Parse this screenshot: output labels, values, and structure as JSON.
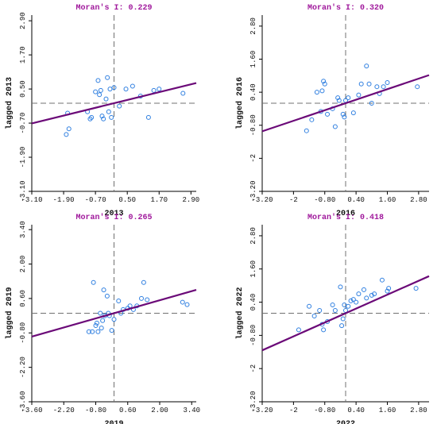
{
  "colors": {
    "title": "#a0199c",
    "regression_line": "#6b0a78",
    "points": "#2f7fe0",
    "reference_lines": "#707070",
    "axes": "#000000"
  },
  "chart_data": [
    {
      "type": "scatter",
      "title": "Moran's I: 0.229",
      "morans_i": 0.229,
      "xlabel": "2013",
      "ylabel": "lagged 2013",
      "xlim": [
        -3.1,
        3.1
      ],
      "ylim": [
        -3.1,
        3.1
      ],
      "xticks": [
        "-3.10",
        "-1.90",
        "-0.70",
        "0.50",
        "1.70",
        "2.90"
      ],
      "yticks": [
        "-3.10",
        "-1.90",
        "-0.70",
        "0.50",
        "1.70",
        "2.90"
      ],
      "xticks_value": [
        -3.1,
        -1.9,
        -0.7,
        0.5,
        1.7,
        2.9
      ],
      "yticks_value": [
        -3.1,
        -1.9,
        -0.7,
        0.5,
        1.7,
        2.9
      ],
      "points": [
        [
          -1.8,
          -1.1
        ],
        [
          -1.75,
          -0.35
        ],
        [
          -1.7,
          -0.9
        ],
        [
          -1.0,
          -0.3
        ],
        [
          -0.9,
          -0.55
        ],
        [
          -0.85,
          -0.5
        ],
        [
          -0.7,
          0.4
        ],
        [
          -0.6,
          0.8
        ],
        [
          -0.55,
          0.3
        ],
        [
          -0.5,
          0.45
        ],
        [
          -0.45,
          -0.45
        ],
        [
          -0.4,
          -0.55
        ],
        [
          -0.3,
          0.15
        ],
        [
          -0.25,
          0.9
        ],
        [
          -0.2,
          -0.3
        ],
        [
          -0.15,
          0.5
        ],
        [
          -0.1,
          -0.5
        ],
        [
          0.0,
          0.55
        ],
        [
          0.2,
          -0.1
        ],
        [
          0.45,
          0.5
        ],
        [
          0.7,
          0.6
        ],
        [
          1.0,
          0.25
        ],
        [
          1.3,
          -0.5
        ],
        [
          1.5,
          0.45
        ],
        [
          1.7,
          0.5
        ],
        [
          2.6,
          0.35
        ]
      ],
      "regression_line": {
        "x": [
          -3.1,
          3.1
        ],
        "y": [
          -0.71,
          0.71
        ]
      }
    },
    {
      "type": "scatter",
      "title": "Moran's I: 0.320",
      "morans_i": 0.32,
      "xlabel": "2016",
      "ylabel": "lagged 2016",
      "xlim": [
        -3.2,
        3.2
      ],
      "ylim": [
        -3.2,
        3.2
      ],
      "xticks": [
        "-3.20",
        "-2",
        "-0.80",
        "0.40",
        "1.60",
        "2.80"
      ],
      "yticks": [
        "-3.20",
        "-2",
        "-0.80",
        "0.40",
        "1.60",
        "2.80"
      ],
      "xticks_value": [
        -3.2,
        -2.0,
        -0.8,
        0.4,
        1.6,
        2.8
      ],
      "yticks_value": [
        -3.2,
        -2.0,
        -0.8,
        0.4,
        1.6,
        2.8
      ],
      "points": [
        [
          -1.5,
          -1.0
        ],
        [
          -1.3,
          -0.6
        ],
        [
          -1.1,
          0.4
        ],
        [
          -0.95,
          -0.3
        ],
        [
          -0.9,
          0.45
        ],
        [
          -0.85,
          0.8
        ],
        [
          -0.8,
          0.7
        ],
        [
          -0.7,
          -0.4
        ],
        [
          -0.5,
          -0.2
        ],
        [
          -0.4,
          -0.85
        ],
        [
          -0.3,
          0.2
        ],
        [
          -0.25,
          0.1
        ],
        [
          -0.1,
          -0.4
        ],
        [
          -0.05,
          -0.5
        ],
        [
          0.0,
          0.1
        ],
        [
          0.1,
          0.2
        ],
        [
          0.3,
          -0.35
        ],
        [
          0.5,
          0.3
        ],
        [
          0.6,
          0.7
        ],
        [
          0.8,
          1.35
        ],
        [
          0.9,
          0.7
        ],
        [
          1.0,
          0.0
        ],
        [
          1.2,
          0.6
        ],
        [
          1.3,
          0.35
        ],
        [
          1.45,
          0.6
        ],
        [
          1.6,
          0.75
        ],
        [
          2.75,
          0.6
        ]
      ],
      "regression_line": {
        "x": [
          -3.2,
          3.2
        ],
        "y": [
          -1.02,
          1.02
        ]
      }
    },
    {
      "type": "scatter",
      "title": "Moran's I: 0.265",
      "morans_i": 0.265,
      "xlabel": "2019",
      "ylabel": "lagged 2019",
      "xlim": [
        -3.6,
        3.6
      ],
      "ylim": [
        -3.6,
        3.6
      ],
      "xticks": [
        "-3.60",
        "-2.20",
        "-0.80",
        "0.60",
        "2.00",
        "3.40"
      ],
      "yticks": [
        "-3.60",
        "-2.20",
        "-0.80",
        "0.60",
        "2.00",
        "3.40"
      ],
      "xticks_value": [
        -3.6,
        -2.2,
        -0.8,
        0.6,
        2.0,
        3.4
      ],
      "yticks_value": [
        -3.6,
        -2.2,
        -0.8,
        0.6,
        2.0,
        3.4
      ],
      "points": [
        [
          -1.1,
          -0.75
        ],
        [
          -0.95,
          -0.75
        ],
        [
          -0.9,
          1.25
        ],
        [
          -0.8,
          -0.5
        ],
        [
          -0.75,
          -0.4
        ],
        [
          -0.7,
          -0.75
        ],
        [
          -0.6,
          0.0
        ],
        [
          -0.55,
          -0.6
        ],
        [
          -0.5,
          -0.3
        ],
        [
          -0.45,
          0.95
        ],
        [
          -0.4,
          -0.1
        ],
        [
          -0.3,
          0.7
        ],
        [
          -0.25,
          0.0
        ],
        [
          -0.2,
          -0.1
        ],
        [
          -0.1,
          -0.7
        ],
        [
          0.0,
          -0.25
        ],
        [
          0.2,
          0.5
        ],
        [
          0.3,
          0.0
        ],
        [
          0.4,
          0.15
        ],
        [
          0.6,
          0.2
        ],
        [
          0.7,
          0.3
        ],
        [
          0.85,
          0.15
        ],
        [
          1.0,
          0.3
        ],
        [
          1.2,
          0.6
        ],
        [
          1.3,
          1.25
        ],
        [
          1.45,
          0.55
        ],
        [
          3.0,
          0.45
        ],
        [
          3.2,
          0.35
        ]
      ],
      "regression_line": {
        "x": [
          -3.6,
          3.6
        ],
        "y": [
          -0.95,
          0.95
        ]
      }
    },
    {
      "type": "scatter",
      "title": "Moran's I: 0.418",
      "morans_i": 0.418,
      "xlabel": "2022",
      "ylabel": "lagged 2022",
      "xlim": [
        -3.2,
        3.2
      ],
      "ylim": [
        -3.2,
        3.2
      ],
      "xticks": [
        "-3.20",
        "-2",
        "-0.80",
        "0.40",
        "1.60",
        "2.80"
      ],
      "yticks": [
        "-3.20",
        "-2",
        "-0.80",
        "0.40",
        "1.60",
        "2.80"
      ],
      "xticks_value": [
        -3.2,
        -2.0,
        -0.8,
        0.4,
        1.6,
        2.8
      ],
      "yticks_value": [
        -3.2,
        -2.0,
        -0.8,
        0.4,
        1.6,
        2.8
      ],
      "points": [
        [
          -1.8,
          -0.6
        ],
        [
          -1.4,
          0.25
        ],
        [
          -1.2,
          -0.1
        ],
        [
          -1.0,
          0.1
        ],
        [
          -0.9,
          -0.4
        ],
        [
          -0.85,
          -0.6
        ],
        [
          -0.7,
          -0.3
        ],
        [
          -0.5,
          0.3
        ],
        [
          -0.4,
          0.1
        ],
        [
          -0.2,
          0.95
        ],
        [
          -0.15,
          -0.45
        ],
        [
          -0.1,
          -0.2
        ],
        [
          -0.05,
          0.3
        ],
        [
          0.0,
          0.1
        ],
        [
          0.1,
          0.25
        ],
        [
          0.2,
          0.45
        ],
        [
          0.3,
          0.5
        ],
        [
          0.4,
          0.4
        ],
        [
          0.5,
          0.7
        ],
        [
          0.7,
          0.85
        ],
        [
          0.8,
          0.55
        ],
        [
          1.0,
          0.65
        ],
        [
          1.1,
          0.7
        ],
        [
          1.4,
          1.2
        ],
        [
          1.6,
          0.8
        ],
        [
          1.65,
          0.9
        ],
        [
          2.7,
          0.9
        ]
      ],
      "regression_line": {
        "x": [
          -3.2,
          3.2
        ],
        "y": [
          -1.34,
          1.34
        ]
      }
    }
  ]
}
